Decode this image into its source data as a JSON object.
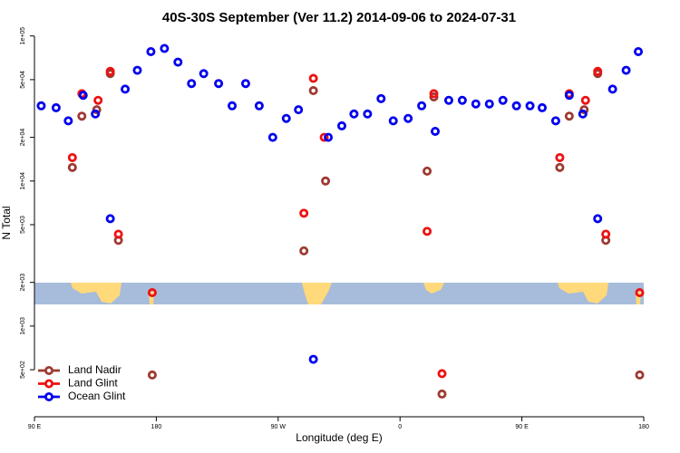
{
  "chart_data": {
    "type": "scatter",
    "title": "40S-30S September (Ver 11.2)   2014-09-06 to 2024-07-31",
    "x_label": "Longitude (deg E)",
    "y_label": "N Total",
    "log_scale_y": true,
    "grid": false,
    "legend_position": "bottom-left",
    "xlim": [
      90,
      540
    ],
    "xticks": [
      {
        "value": 90,
        "label": "90 E"
      },
      {
        "value": 180,
        "label": "180"
      },
      {
        "value": 270,
        "label": "90 W"
      },
      {
        "value": 360,
        "label": "0"
      },
      {
        "value": 450,
        "label": "90 E"
      },
      {
        "value": 540,
        "label": "180"
      }
    ],
    "ylim": [
      237,
      107000
    ],
    "yticks": [
      {
        "value": 100000,
        "label": "1e+05"
      },
      {
        "value": 50000,
        "label": "5e+04"
      },
      {
        "value": 20000,
        "label": "2e+04"
      },
      {
        "value": 10000,
        "label": "1e+04"
      },
      {
        "value": 5000,
        "label": "5e+03"
      },
      {
        "value": 2000,
        "label": "2e+03"
      },
      {
        "value": 1000,
        "label": "1e+03"
      },
      {
        "value": 500,
        "label": "5e+02"
      }
    ],
    "series": [
      {
        "name": "Land Nadir",
        "color": "#9e3a32",
        "x": [
          118,
          125,
          136,
          146,
          152,
          177,
          289,
          296,
          305,
          380,
          385,
          391,
          478,
          485,
          496,
          506,
          512,
          537
        ],
        "values": [
          12400,
          28000,
          31000,
          55000,
          3900,
          460,
          3300,
          42000,
          10000,
          11700,
          38000,
          340,
          12400,
          28000,
          31000,
          55000,
          3900,
          460
        ]
      },
      {
        "name": "Land Glint",
        "color": "#ee1111",
        "x": [
          118,
          125,
          137,
          146,
          152,
          177,
          289,
          296,
          304,
          380,
          385,
          391,
          478,
          485,
          497,
          506,
          512,
          537
        ],
        "values": [
          14500,
          40000,
          36000,
          57000,
          4300,
          1700,
          6000,
          51000,
          20000,
          4500,
          40000,
          470,
          14500,
          40000,
          36000,
          57000,
          4300,
          1700
        ]
      },
      {
        "name": "Ocean Glint",
        "color": "#0000ee",
        "x": [
          95,
          106,
          115,
          126,
          135,
          146,
          157,
          166,
          176,
          186,
          196,
          206,
          215,
          226,
          236,
          246,
          256,
          266,
          276,
          285,
          296,
          307,
          317,
          326,
          336,
          346,
          355,
          366,
          376,
          386,
          396,
          406,
          416,
          426,
          436,
          446,
          456,
          465,
          475,
          485,
          495,
          506,
          517,
          527,
          536
        ],
        "values": [
          33000,
          32000,
          26000,
          39000,
          29000,
          5500,
          43000,
          58000,
          78000,
          82000,
          66000,
          47000,
          55000,
          47000,
          33000,
          47000,
          33000,
          20000,
          27000,
          31000,
          590,
          20000,
          24000,
          29000,
          29000,
          37000,
          26000,
          27000,
          33000,
          22000,
          36000,
          36000,
          34000,
          34000,
          36000,
          33000,
          33000,
          32000,
          26000,
          39000,
          29000,
          5500,
          43000,
          58000,
          78000
        ]
      }
    ]
  }
}
